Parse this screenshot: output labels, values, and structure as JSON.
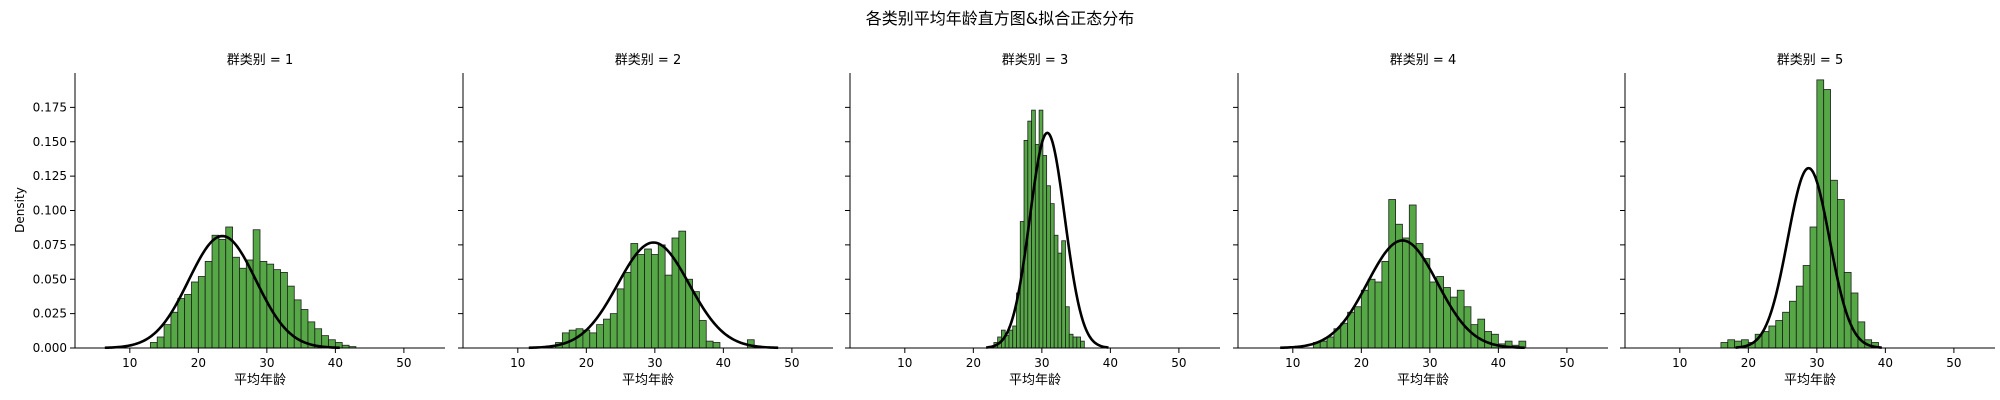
{
  "figure": {
    "suptitle": "各类别平均年龄直方图&拟合正态分布",
    "ylabel": "Density",
    "xlabel": "平均年龄",
    "colors": {
      "bar_fill": "#55a845",
      "bar_edge": "#1f1f1f",
      "curve": "#000000",
      "axis": "#000000"
    }
  },
  "chart_data": [
    {
      "type": "bar",
      "title": "群类别 = 1",
      "xlabel": "平均年龄",
      "ylabel": "Density",
      "xlim": [
        2,
        56
      ],
      "ylim": [
        0,
        0.2
      ],
      "xticks": [
        10,
        20,
        30,
        40,
        50
      ],
      "yticks": [
        0.0,
        0.025,
        0.05,
        0.075,
        0.1,
        0.125,
        0.15,
        0.175
      ],
      "bin_start": 13.0,
      "bin_width": 1.0,
      "values": [
        0.004,
        0.008,
        0.017,
        0.026,
        0.036,
        0.039,
        0.048,
        0.052,
        0.063,
        0.082,
        0.079,
        0.088,
        0.066,
        0.058,
        0.064,
        0.086,
        0.063,
        0.061,
        0.057,
        0.055,
        0.045,
        0.035,
        0.028,
        0.019,
        0.014,
        0.009,
        0.006,
        0.004,
        0.002,
        0.001
      ],
      "fit": {
        "mean": 23.5,
        "sd": 4.9
      }
    },
    {
      "type": "bar",
      "title": "群类别 = 2",
      "xlabel": "平均年龄",
      "ylabel": "Density",
      "xlim": [
        2,
        56
      ],
      "ylim": [
        0,
        0.2
      ],
      "xticks": [
        10,
        20,
        30,
        40,
        50
      ],
      "yticks": [
        0.0,
        0.025,
        0.05,
        0.075,
        0.1,
        0.125,
        0.15,
        0.175
      ],
      "bin_start": 15.5,
      "bin_width": 1.0,
      "values": [
        0.004,
        0.011,
        0.013,
        0.014,
        0.013,
        0.011,
        0.017,
        0.021,
        0.025,
        0.043,
        0.055,
        0.076,
        0.068,
        0.072,
        0.068,
        0.075,
        0.053,
        0.08,
        0.085,
        0.05,
        0.041,
        0.02,
        0.005,
        0.004,
        0.0,
        0.0,
        0.0,
        0.0,
        0.006,
        0.0
      ],
      "fit": {
        "mean": 29.8,
        "sd": 5.2
      }
    },
    {
      "type": "bar",
      "title": "群类别 = 3",
      "xlabel": "平均年龄",
      "ylabel": "Density",
      "xlim": [
        2,
        56
      ],
      "ylim": [
        0,
        0.2
      ],
      "xticks": [
        10,
        20,
        30,
        40,
        50
      ],
      "yticks": [
        0.0,
        0.025,
        0.05,
        0.075,
        0.1,
        0.125,
        0.15,
        0.175
      ],
      "bin_start": 23.0,
      "bin_width": 0.55,
      "values": [
        0.004,
        0.008,
        0.013,
        0.009,
        0.013,
        0.016,
        0.04,
        0.092,
        0.151,
        0.165,
        0.173,
        0.148,
        0.173,
        0.14,
        0.118,
        0.105,
        0.082,
        0.069,
        0.078,
        0.03,
        0.01,
        0.008,
        0.008,
        0.005
      ],
      "fit": {
        "mean": 30.8,
        "sd": 2.55
      }
    },
    {
      "type": "bar",
      "title": "群类别 = 4",
      "xlabel": "平均年龄",
      "ylabel": "Density",
      "xlim": [
        2,
        56
      ],
      "ylim": [
        0,
        0.2
      ],
      "xticks": [
        10,
        20,
        30,
        40,
        50
      ],
      "yticks": [
        0.0,
        0.025,
        0.05,
        0.075,
        0.1,
        0.125,
        0.15,
        0.175
      ],
      "bin_start": 13.0,
      "bin_width": 1.0,
      "values": [
        0.004,
        0.005,
        0.008,
        0.014,
        0.018,
        0.026,
        0.03,
        0.042,
        0.05,
        0.048,
        0.063,
        0.108,
        0.09,
        0.08,
        0.104,
        0.076,
        0.065,
        0.048,
        0.052,
        0.044,
        0.037,
        0.042,
        0.03,
        0.017,
        0.021,
        0.012,
        0.01,
        0.003,
        0.005,
        0.002,
        0.005
      ],
      "fit": {
        "mean": 26.0,
        "sd": 5.1
      }
    },
    {
      "type": "bar",
      "title": "群类别 = 5",
      "xlabel": "平均年龄",
      "ylabel": "Density",
      "xlim": [
        2,
        56
      ],
      "ylim": [
        0,
        0.2
      ],
      "xticks": [
        10,
        20,
        30,
        40,
        50
      ],
      "yticks": [
        0.0,
        0.025,
        0.05,
        0.075,
        0.1,
        0.125,
        0.15,
        0.175
      ],
      "bin_start": 16.0,
      "bin_width": 1.0,
      "values": [
        0.004,
        0.006,
        0.005,
        0.006,
        0.004,
        0.01,
        0.012,
        0.016,
        0.02,
        0.026,
        0.034,
        0.045,
        0.06,
        0.088,
        0.195,
        0.188,
        0.122,
        0.108,
        0.055,
        0.04,
        0.019,
        0.006,
        0.004
      ],
      "fit": {
        "mean": 28.8,
        "sd": 3.05
      }
    }
  ]
}
